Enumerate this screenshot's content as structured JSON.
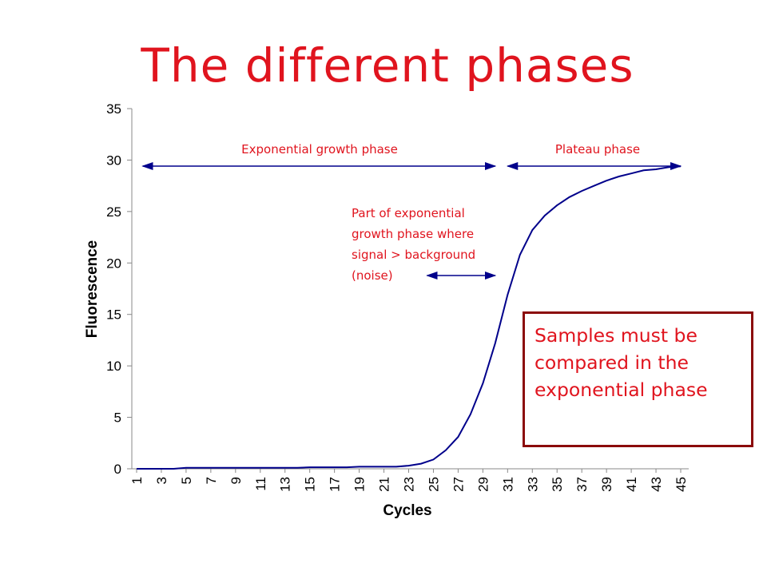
{
  "title": "The different phases",
  "colors": {
    "accent": "#e0141e",
    "curve": "#00008b",
    "callout_border": "#8b0a0a"
  },
  "chart_data": {
    "type": "line",
    "xlabel": "Cycles",
    "ylabel": "Fluorescence",
    "ylim": [
      0,
      35
    ],
    "y_ticks": [
      0,
      5,
      10,
      15,
      20,
      25,
      30,
      35
    ],
    "xlim": [
      1,
      45
    ],
    "x_tick_labels": [
      "1",
      "3",
      "5",
      "7",
      "9",
      "11",
      "13",
      "15",
      "17",
      "19",
      "21",
      "23",
      "25",
      "27",
      "29",
      "31",
      "33",
      "35",
      "37",
      "39",
      "41",
      "43",
      "45"
    ],
    "grid": false,
    "series": [
      {
        "x": [
          1,
          2,
          3,
          4,
          5,
          6,
          7,
          8,
          9,
          10,
          11,
          12,
          13,
          14,
          15,
          16,
          17,
          18,
          19,
          20,
          21,
          22,
          23,
          24,
          25,
          26,
          27,
          28,
          29,
          30,
          31,
          32,
          33,
          34,
          35,
          36,
          37,
          38,
          39,
          40,
          41,
          42,
          43,
          44,
          45
        ],
        "values": [
          0,
          0,
          0,
          0,
          0.1,
          0.1,
          0.1,
          0.1,
          0.1,
          0.1,
          0.1,
          0.1,
          0.1,
          0.1,
          0.15,
          0.15,
          0.15,
          0.15,
          0.2,
          0.2,
          0.2,
          0.2,
          0.3,
          0.5,
          0.9,
          1.8,
          3.1,
          5.3,
          8.3,
          12.2,
          16.9,
          20.8,
          23.2,
          24.6,
          25.6,
          26.4,
          27.0,
          27.5,
          28.0,
          28.4,
          28.7,
          29.0,
          29.1,
          29.3,
          29.4
        ]
      }
    ],
    "annotations": [
      {
        "text": "Exponential growth phase",
        "from_x": 1.5,
        "to_x": 30
      },
      {
        "text": "Plateau phase",
        "from_x": 31,
        "to_x": 45
      },
      {
        "lines": [
          "Part of exponential",
          "growth phase where",
          "signal > background",
          "(noise)"
        ],
        "from_x": 24.5,
        "to_x": 30
      }
    ]
  },
  "callout": {
    "lines": [
      "Samples must be",
      "compared in the",
      "exponential phase"
    ]
  }
}
